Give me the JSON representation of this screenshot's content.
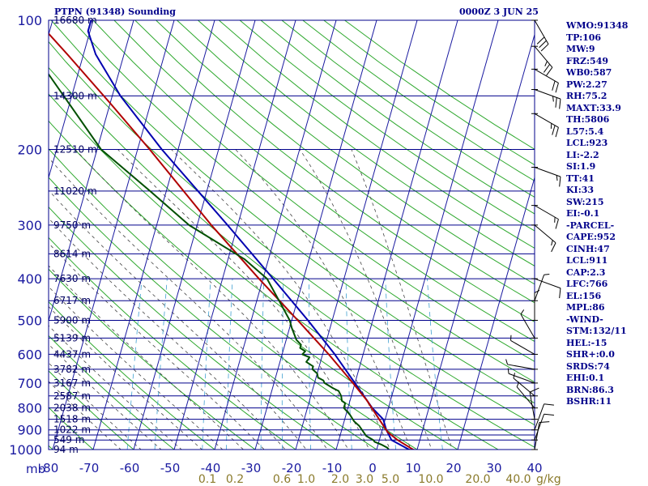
{
  "header": {
    "title": "PTPN (91348) Sounding",
    "time": "0000Z  3 JUN 25"
  },
  "indices": [
    "WMO:91348",
    "TP:106",
    "MW:9",
    "FRZ:549",
    "WB0:587",
    "PW:2.27",
    "RH:75.2",
    "MAXT:33.9",
    "TH:5806",
    "L57:5.4",
    "LCL:923",
    "LI:-2.2",
    "SI:1.9",
    "TT:41",
    "KI:33",
    "SW:215",
    "EI:-0.1",
    "-PARCEL-",
    "CAPE:952",
    "CINH:47",
    "LCL:911",
    "CAP:2.3",
    "LFC:766",
    "EL:156",
    "MPL:86",
    "-WIND-",
    "STM:132/11",
    "HEL:-15",
    "SHR+:0.0",
    "SRDS:74",
    "EHI:0.1",
    "BRN:86.3",
    "BSHR:11"
  ],
  "colors": {
    "isobar": "#00008b",
    "isotherm": "#1a1aa0",
    "dry_adiabat": "#2ea82e",
    "moist_adiabat": "#444444",
    "mixing_ratio": "#3fa0d0",
    "temperature": "#0000b0",
    "dewpoint": "#005000",
    "parcel": "#b00000",
    "label_pressure": "#1a1aa0",
    "label_mixing": "#8a7a2a"
  },
  "chart_data": {
    "type": "skew-t",
    "title": "PTPN (91348) Sounding",
    "pressure_unit_label": "mb",
    "mixing_ratio_unit_label": "g/kg",
    "pressure_ticks": [
      100,
      200,
      300,
      400,
      500,
      600,
      700,
      800,
      900,
      1000
    ],
    "pressure_lines": [
      100,
      150,
      200,
      250,
      300,
      350,
      400,
      450,
      500,
      550,
      600,
      650,
      700,
      750,
      800,
      850,
      900,
      925,
      950,
      1000
    ],
    "height_labels": [
      {
        "p": 100,
        "label": "16680 m"
      },
      {
        "p": 150,
        "label": "14300 m"
      },
      {
        "p": 200,
        "label": "12510 m"
      },
      {
        "p": 250,
        "label": "11020 m"
      },
      {
        "p": 300,
        "label": "9750 m"
      },
      {
        "p": 350,
        "label": "8614 m"
      },
      {
        "p": 400,
        "label": "7630 m"
      },
      {
        "p": 450,
        "label": "6717 m"
      },
      {
        "p": 500,
        "label": "5900 m"
      },
      {
        "p": 550,
        "label": "5139 m"
      },
      {
        "p": 600,
        "label": "4437 m"
      },
      {
        "p": 650,
        "label": "3782 m"
      },
      {
        "p": 700,
        "label": "3167 m"
      },
      {
        "p": 750,
        "label": "2587 m"
      },
      {
        "p": 800,
        "label": "2038 m"
      },
      {
        "p": 850,
        "label": "1518 m"
      },
      {
        "p": 900,
        "label": "1022 m"
      },
      {
        "p": 950,
        "label": "549 m"
      },
      {
        "p": 1000,
        "label": "94 m"
      }
    ],
    "temperature_ticks": [
      -80,
      -70,
      -60,
      -50,
      -40,
      -30,
      -20,
      -10,
      0,
      10,
      20,
      30,
      40
    ],
    "mixing_ratio_labels": [
      "0.1",
      "0.2",
      "0.6",
      "1.0",
      "2.0",
      "3.0",
      "5.0",
      "10.0",
      "20.0",
      "40.0"
    ],
    "temperature": [
      {
        "p": 1010,
        "t": 30.5
      },
      {
        "p": 1000,
        "t": 28.0
      },
      {
        "p": 950,
        "t": 23.0
      },
      {
        "p": 900,
        "t": 21.0
      },
      {
        "p": 850,
        "t": 19.5
      },
      {
        "p": 800,
        "t": 16.0
      },
      {
        "p": 700,
        "t": 10.0
      },
      {
        "p": 600,
        "t": 3.0
      },
      {
        "p": 500,
        "t": -6.0
      },
      {
        "p": 400,
        "t": -17.5
      },
      {
        "p": 300,
        "t": -32.5
      },
      {
        "p": 200,
        "t": -54.0
      },
      {
        "p": 150,
        "t": -68.0
      },
      {
        "p": 120,
        "t": -77.0
      },
      {
        "p": 106,
        "t": -80.5
      },
      {
        "p": 100,
        "t": -80.5
      }
    ],
    "dewpoint": [
      {
        "p": 1000,
        "t": 23.0
      },
      {
        "p": 990,
        "t": 22.5
      },
      {
        "p": 975,
        "t": 21.0
      },
      {
        "p": 960,
        "t": 19.0
      },
      {
        "p": 950,
        "t": 18.5
      },
      {
        "p": 930,
        "t": 16.5
      },
      {
        "p": 900,
        "t": 15.0
      },
      {
        "p": 880,
        "t": 14.0
      },
      {
        "p": 860,
        "t": 12.5
      },
      {
        "p": 850,
        "t": 12.0
      },
      {
        "p": 830,
        "t": 11.0
      },
      {
        "p": 800,
        "t": 9.0
      },
      {
        "p": 780,
        "t": 9.0
      },
      {
        "p": 770,
        "t": 8.0
      },
      {
        "p": 750,
        "t": 7.5
      },
      {
        "p": 740,
        "t": 7.0
      },
      {
        "p": 730,
        "t": 6.5
      },
      {
        "p": 720,
        "t": 5.0
      },
      {
        "p": 700,
        "t": 2.5
      },
      {
        "p": 690,
        "t": 2.0
      },
      {
        "p": 680,
        "t": 0.5
      },
      {
        "p": 665,
        "t": 0.0
      },
      {
        "p": 650,
        "t": -1.5
      },
      {
        "p": 640,
        "t": -1.5
      },
      {
        "p": 625,
        "t": -3.5
      },
      {
        "p": 610,
        "t": -3.0
      },
      {
        "p": 600,
        "t": -5.0
      },
      {
        "p": 590,
        "t": -4.5
      },
      {
        "p": 580,
        "t": -6.0
      },
      {
        "p": 570,
        "t": -6.0
      },
      {
        "p": 555,
        "t": -7.5
      },
      {
        "p": 520,
        "t": -9.5
      },
      {
        "p": 500,
        "t": -10.5
      },
      {
        "p": 450,
        "t": -14.5
      },
      {
        "p": 400,
        "t": -19.0
      },
      {
        "p": 360,
        "t": -26.0
      },
      {
        "p": 300,
        "t": -42.0
      },
      {
        "p": 250,
        "t": -54.0
      },
      {
        "p": 200,
        "t": -69.0
      },
      {
        "p": 150,
        "t": -82.0
      },
      {
        "p": 115,
        "t": -94.0
      }
    ],
    "parcel": [
      {
        "p": 1010,
        "t": 31.0
      },
      {
        "p": 1000,
        "t": 29.0
      },
      {
        "p": 950,
        "t": 24.5
      },
      {
        "p": 911,
        "t": 21.5
      },
      {
        "p": 850,
        "t": 18.5
      },
      {
        "p": 766,
        "t": 14.0
      },
      {
        "p": 700,
        "t": 9.5
      },
      {
        "p": 600,
        "t": 1.5
      },
      {
        "p": 500,
        "t": -8.5
      },
      {
        "p": 400,
        "t": -21.0
      },
      {
        "p": 300,
        "t": -36.5
      },
      {
        "p": 200,
        "t": -57.0
      },
      {
        "p": 156,
        "t": -70.0
      },
      {
        "p": 120,
        "t": -84.0
      },
      {
        "p": 100,
        "t": -94.0
      }
    ],
    "wind_barbs": [
      {
        "p": 100,
        "dir": 330,
        "spd": 30
      },
      {
        "p": 115,
        "dir": 320,
        "spd": 25
      },
      {
        "p": 130,
        "dir": 300,
        "spd": 20
      },
      {
        "p": 145,
        "dir": 290,
        "spd": 25
      },
      {
        "p": 165,
        "dir": 300,
        "spd": 25
      },
      {
        "p": 220,
        "dir": 290,
        "spd": 15
      },
      {
        "p": 270,
        "dir": 300,
        "spd": 15
      },
      {
        "p": 300,
        "dir": 310,
        "spd": 15
      },
      {
        "p": 400,
        "dir": 290,
        "spd": 10
      },
      {
        "p": 450,
        "dir": 200,
        "spd": 5
      },
      {
        "p": 500,
        "dir": 180,
        "spd": 5
      },
      {
        "p": 550,
        "dir": 150,
        "spd": 5
      },
      {
        "p": 600,
        "dir": 120,
        "spd": 5
      },
      {
        "p": 650,
        "dir": 100,
        "spd": 5
      },
      {
        "p": 700,
        "dir": 110,
        "spd": 5
      },
      {
        "p": 750,
        "dir": 130,
        "spd": 5
      },
      {
        "p": 800,
        "dir": 140,
        "spd": 5
      },
      {
        "p": 850,
        "dir": 170,
        "spd": 10
      },
      {
        "p": 900,
        "dir": 200,
        "spd": 10
      },
      {
        "p": 950,
        "dir": 200,
        "spd": 10
      },
      {
        "p": 1000,
        "dir": 190,
        "spd": 10
      }
    ]
  }
}
